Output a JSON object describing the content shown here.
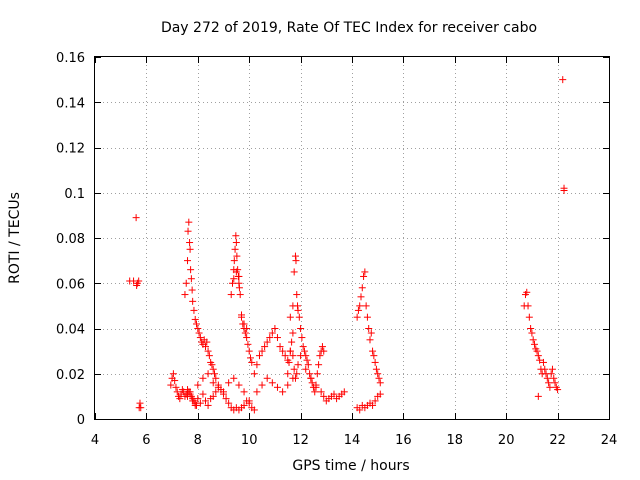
{
  "chart_data": {
    "type": "scatter",
    "title": "Day 272 of 2019, Rate Of TEC Index for receiver cabo",
    "xlabel": "GPS time / hours",
    "ylabel": "ROTI / TECUs",
    "xlim": [
      4,
      24
    ],
    "ylim": [
      0,
      0.16
    ],
    "xticks": [
      4,
      6,
      8,
      10,
      12,
      14,
      16,
      18,
      20,
      22,
      24
    ],
    "yticks": [
      0,
      0.02,
      0.04,
      0.06,
      0.08,
      0.1,
      0.12,
      0.14,
      0.16
    ],
    "xtick_labels": [
      "4",
      "6",
      "8",
      "10",
      "12",
      "14",
      "16",
      "18",
      "20",
      "22",
      "24"
    ],
    "ytick_labels": [
      "0",
      "0.02",
      "0.04",
      "0.06",
      "0.08",
      "0.1",
      "0.12",
      "0.14",
      "0.16"
    ],
    "grid": true,
    "marker": "+",
    "color": "#ff0000",
    "series": [
      {
        "name": "ROTI",
        "x": [
          5.35,
          5.5,
          5.6,
          5.62,
          5.65,
          5.7,
          5.72,
          5.75,
          5.78,
          6.95,
          7.0,
          7.05,
          7.1,
          7.15,
          7.2,
          7.25,
          7.3,
          7.35,
          7.4,
          7.45,
          7.5,
          7.55,
          7.6,
          7.65,
          7.7,
          7.75,
          7.8,
          7.85,
          7.9,
          7.95,
          7.5,
          7.55,
          7.6,
          7.62,
          7.65,
          7.68,
          7.7,
          7.72,
          7.75,
          7.78,
          7.8,
          7.85,
          7.9,
          7.95,
          8.0,
          8.05,
          8.1,
          8.15,
          8.2,
          8.25,
          8.3,
          8.35,
          8.4,
          8.45,
          8.5,
          8.55,
          8.6,
          8.65,
          8.7,
          7.6,
          7.7,
          7.8,
          7.9,
          8.0,
          8.1,
          8.2,
          8.3,
          8.4,
          8.5,
          8.6,
          8.7,
          8.8,
          8.9,
          9.0,
          9.1,
          9.2,
          9.3,
          9.4,
          9.5,
          9.6,
          9.7,
          9.8,
          9.9,
          10.0,
          10.1,
          10.2,
          8.0,
          8.2,
          8.4,
          8.6,
          8.8,
          9.0,
          9.2,
          9.4,
          9.6,
          9.8,
          10.0,
          9.3,
          9.35,
          9.4,
          9.42,
          9.45,
          9.48,
          9.5,
          9.52,
          9.55,
          9.58,
          9.6,
          9.62,
          9.65,
          9.7,
          9.75,
          9.8,
          9.85,
          9.9,
          9.95,
          10.0,
          10.05,
          10.1,
          9.4,
          9.5,
          9.6,
          9.7,
          9.8,
          9.9,
          10.2,
          10.3,
          10.4,
          10.5,
          10.6,
          10.7,
          10.8,
          10.9,
          11.0,
          11.1,
          11.2,
          11.3,
          11.4,
          11.5,
          11.6,
          11.7,
          10.3,
          10.5,
          10.7,
          10.9,
          11.1,
          11.3,
          11.5,
          11.7,
          11.6,
          11.7,
          11.75,
          11.8,
          11.82,
          11.85,
          11.88,
          11.9,
          11.95,
          12.0,
          12.05,
          12.1,
          12.15,
          12.2,
          12.25,
          12.3,
          12.35,
          12.4,
          12.45,
          12.5,
          12.55,
          12.6,
          12.65,
          12.7,
          12.75,
          12.8,
          12.85,
          12.9,
          11.5,
          11.55,
          11.6,
          11.65,
          11.7,
          11.75,
          11.8,
          11.85,
          11.9,
          12.0,
          12.2,
          12.4,
          12.6,
          12.8,
          12.9,
          13.0,
          13.1,
          13.2,
          13.3,
          13.4,
          13.5,
          13.6,
          13.7,
          14.2,
          14.3,
          14.4,
          14.5,
          14.6,
          14.7,
          14.8,
          14.9,
          15.0,
          15.1,
          14.2,
          14.25,
          14.3,
          14.35,
          14.4,
          14.45,
          14.5,
          14.55,
          14.6,
          14.65,
          14.7,
          14.75,
          14.8,
          14.85,
          14.9,
          14.95,
          15.0,
          15.05,
          15.1,
          20.7,
          20.75,
          20.8,
          20.85,
          20.9,
          20.95,
          21.0,
          21.05,
          21.1,
          21.15,
          21.2,
          21.25,
          21.3,
          21.35,
          21.4,
          21.45,
          21.5,
          21.55,
          21.6,
          21.65,
          21.7,
          21.75,
          21.8,
          21.85,
          21.9,
          21.95,
          22.0,
          21.25,
          22.2,
          22.25,
          22.25
        ],
        "y": [
          0.061,
          0.061,
          0.089,
          0.059,
          0.06,
          0.061,
          0.005,
          0.007,
          0.005,
          0.015,
          0.018,
          0.02,
          0.017,
          0.014,
          0.012,
          0.01,
          0.009,
          0.011,
          0.013,
          0.012,
          0.01,
          0.011,
          0.013,
          0.012,
          0.011,
          0.01,
          0.009,
          0.008,
          0.007,
          0.006,
          0.055,
          0.06,
          0.07,
          0.083,
          0.087,
          0.078,
          0.075,
          0.066,
          0.062,
          0.057,
          0.052,
          0.048,
          0.044,
          0.042,
          0.04,
          0.038,
          0.036,
          0.034,
          0.033,
          0.035,
          0.032,
          0.034,
          0.03,
          0.028,
          0.025,
          0.024,
          0.022,
          0.02,
          0.018,
          0.01,
          0.012,
          0.008,
          0.006,
          0.009,
          0.007,
          0.011,
          0.008,
          0.006,
          0.009,
          0.01,
          0.012,
          0.015,
          0.013,
          0.011,
          0.009,
          0.007,
          0.005,
          0.004,
          0.005,
          0.004,
          0.005,
          0.006,
          0.008,
          0.007,
          0.005,
          0.004,
          0.015,
          0.018,
          0.02,
          0.016,
          0.014,
          0.012,
          0.016,
          0.018,
          0.015,
          0.012,
          0.008,
          0.055,
          0.06,
          0.066,
          0.07,
          0.075,
          0.081,
          0.078,
          0.072,
          0.066,
          0.063,
          0.06,
          0.058,
          0.055,
          0.046,
          0.042,
          0.04,
          0.038,
          0.036,
          0.033,
          0.03,
          0.027,
          0.025,
          0.062,
          0.065,
          0.063,
          0.045,
          0.042,
          0.04,
          0.02,
          0.024,
          0.028,
          0.03,
          0.032,
          0.034,
          0.036,
          0.038,
          0.04,
          0.036,
          0.032,
          0.03,
          0.028,
          0.026,
          0.03,
          0.028,
          0.012,
          0.015,
          0.018,
          0.016,
          0.014,
          0.012,
          0.015,
          0.018,
          0.045,
          0.05,
          0.065,
          0.072,
          0.07,
          0.055,
          0.05,
          0.048,
          0.045,
          0.04,
          0.036,
          0.032,
          0.03,
          0.028,
          0.026,
          0.024,
          0.02,
          0.018,
          0.016,
          0.014,
          0.012,
          0.015,
          0.02,
          0.024,
          0.028,
          0.03,
          0.032,
          0.03,
          0.02,
          0.025,
          0.03,
          0.034,
          0.038,
          0.022,
          0.018,
          0.02,
          0.024,
          0.028,
          0.022,
          0.018,
          0.014,
          0.012,
          0.01,
          0.008,
          0.009,
          0.01,
          0.011,
          0.009,
          0.01,
          0.011,
          0.012,
          0.005,
          0.004,
          0.006,
          0.005,
          0.006,
          0.007,
          0.006,
          0.008,
          0.01,
          0.011,
          0.045,
          0.048,
          0.05,
          0.054,
          0.058,
          0.063,
          0.065,
          0.05,
          0.045,
          0.04,
          0.035,
          0.038,
          0.03,
          0.028,
          0.025,
          0.022,
          0.02,
          0.018,
          0.016,
          0.05,
          0.055,
          0.056,
          0.05,
          0.045,
          0.04,
          0.038,
          0.035,
          0.033,
          0.031,
          0.03,
          0.028,
          0.026,
          0.022,
          0.02,
          0.025,
          0.022,
          0.02,
          0.018,
          0.016,
          0.014,
          0.02,
          0.022,
          0.018,
          0.016,
          0.014,
          0.013,
          0.01,
          0.15,
          0.102,
          0.101
        ]
      }
    ]
  }
}
